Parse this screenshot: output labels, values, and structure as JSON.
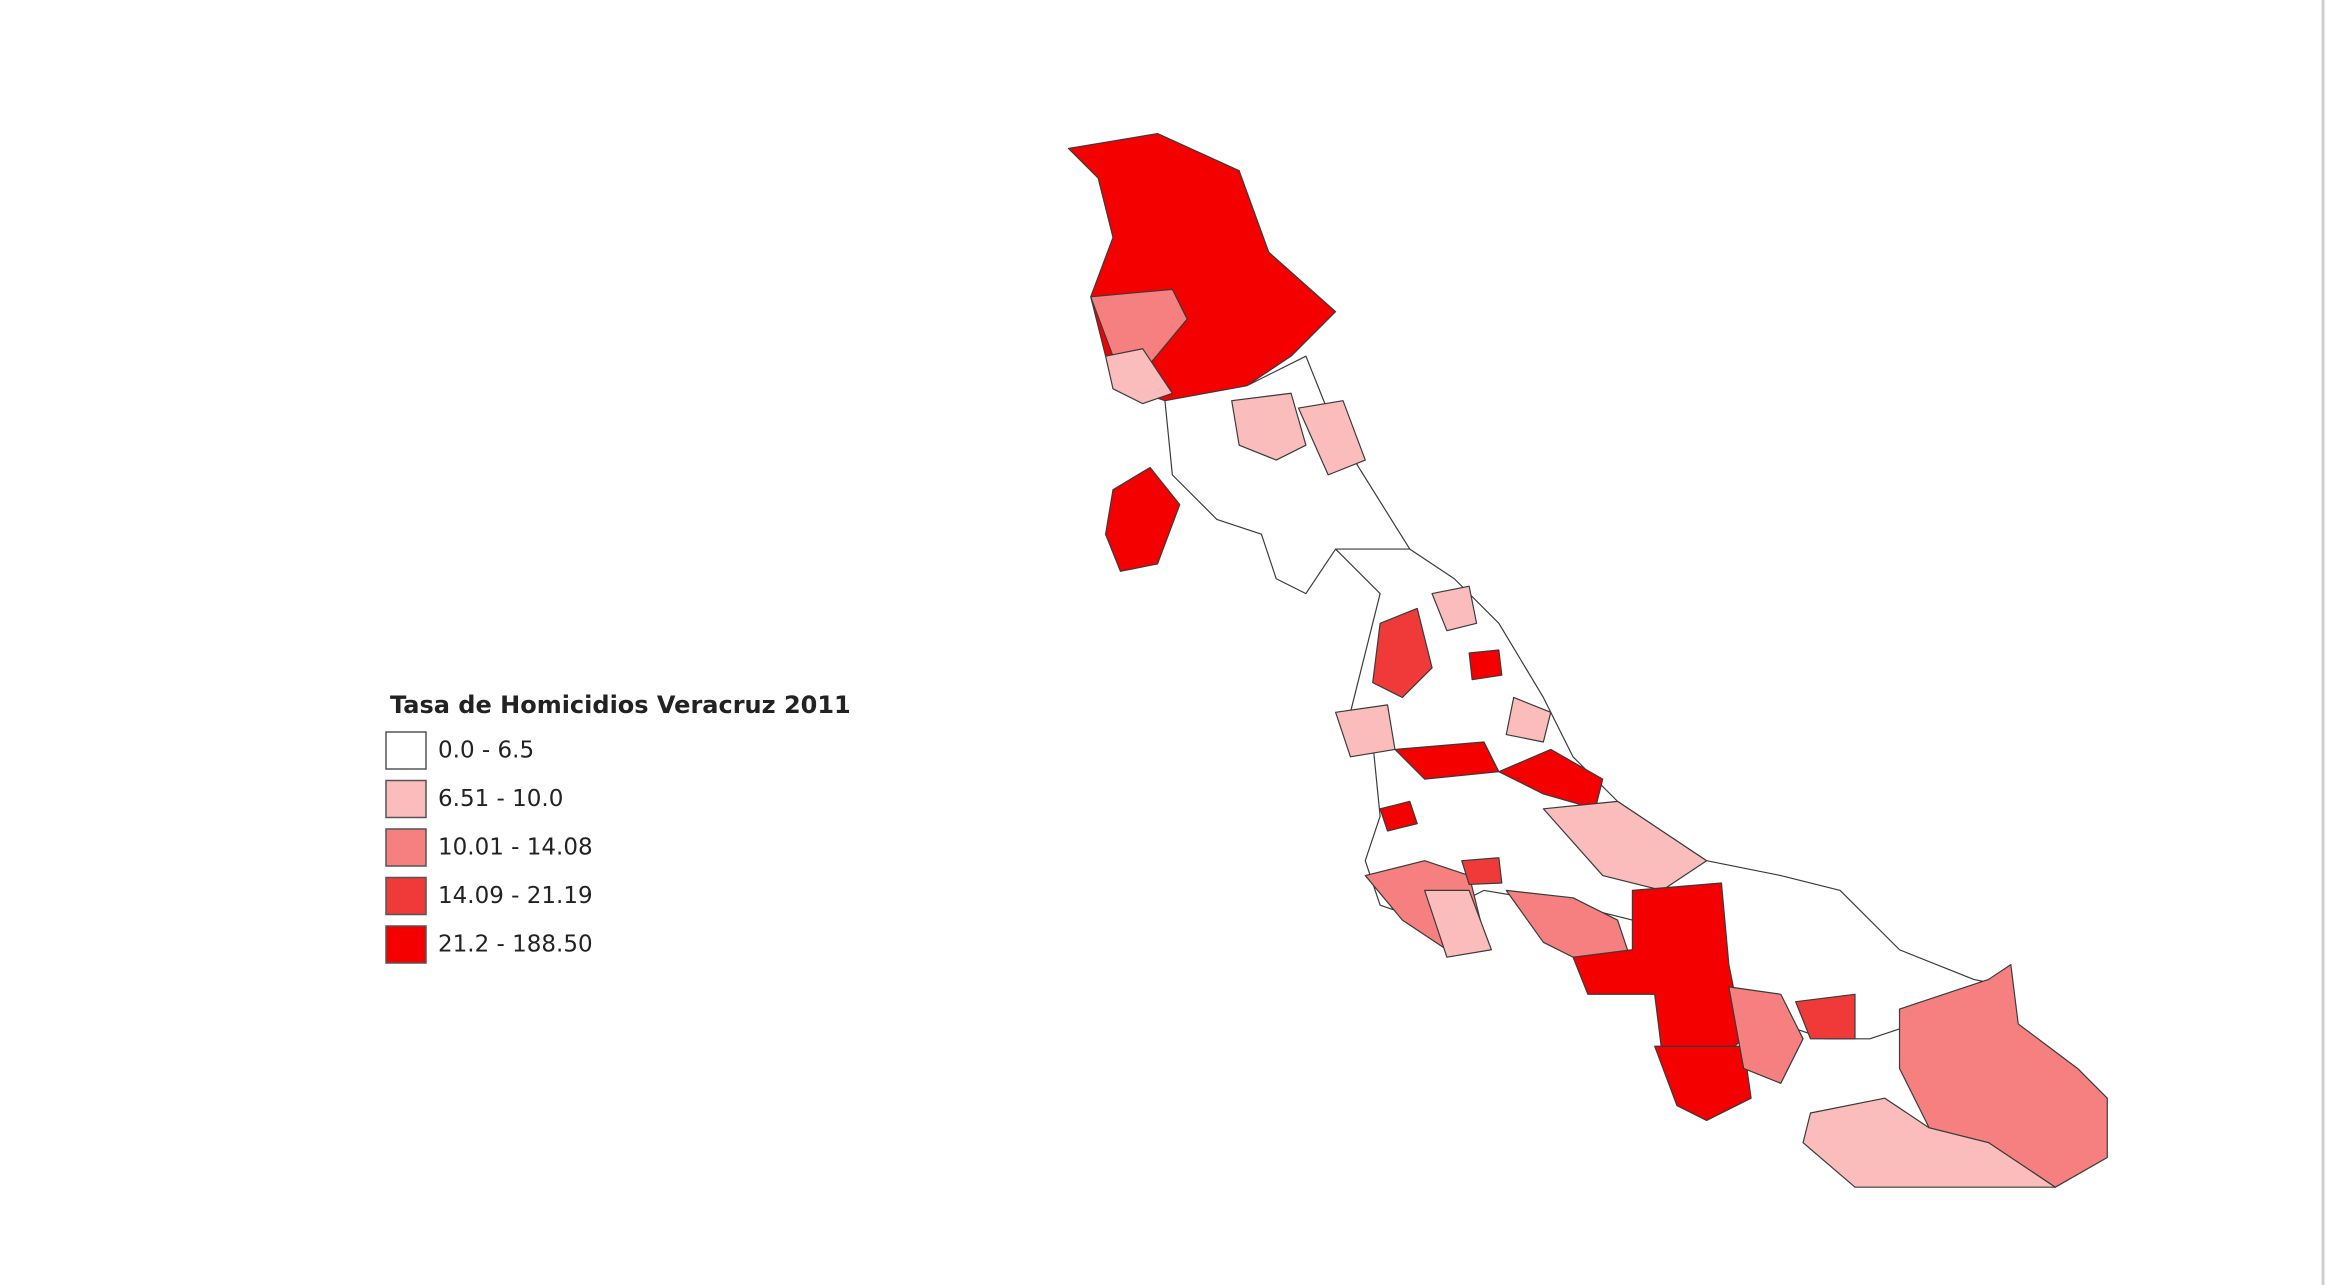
{
  "legend": {
    "title": "Tasa de Homicidios Veracruz 2011",
    "items": [
      {
        "label": "0.0 - 6.5",
        "color": "#ffffff"
      },
      {
        "label": "6.51 - 10.0",
        "color": "#fbbcbc"
      },
      {
        "label": "10.01 - 14.08",
        "color": "#f68080"
      },
      {
        "label": "14.09 - 21.19",
        "color": "#f03a3a"
      },
      {
        "label": "21.2 - 188.50",
        "color": "#f50000"
      }
    ]
  }
}
